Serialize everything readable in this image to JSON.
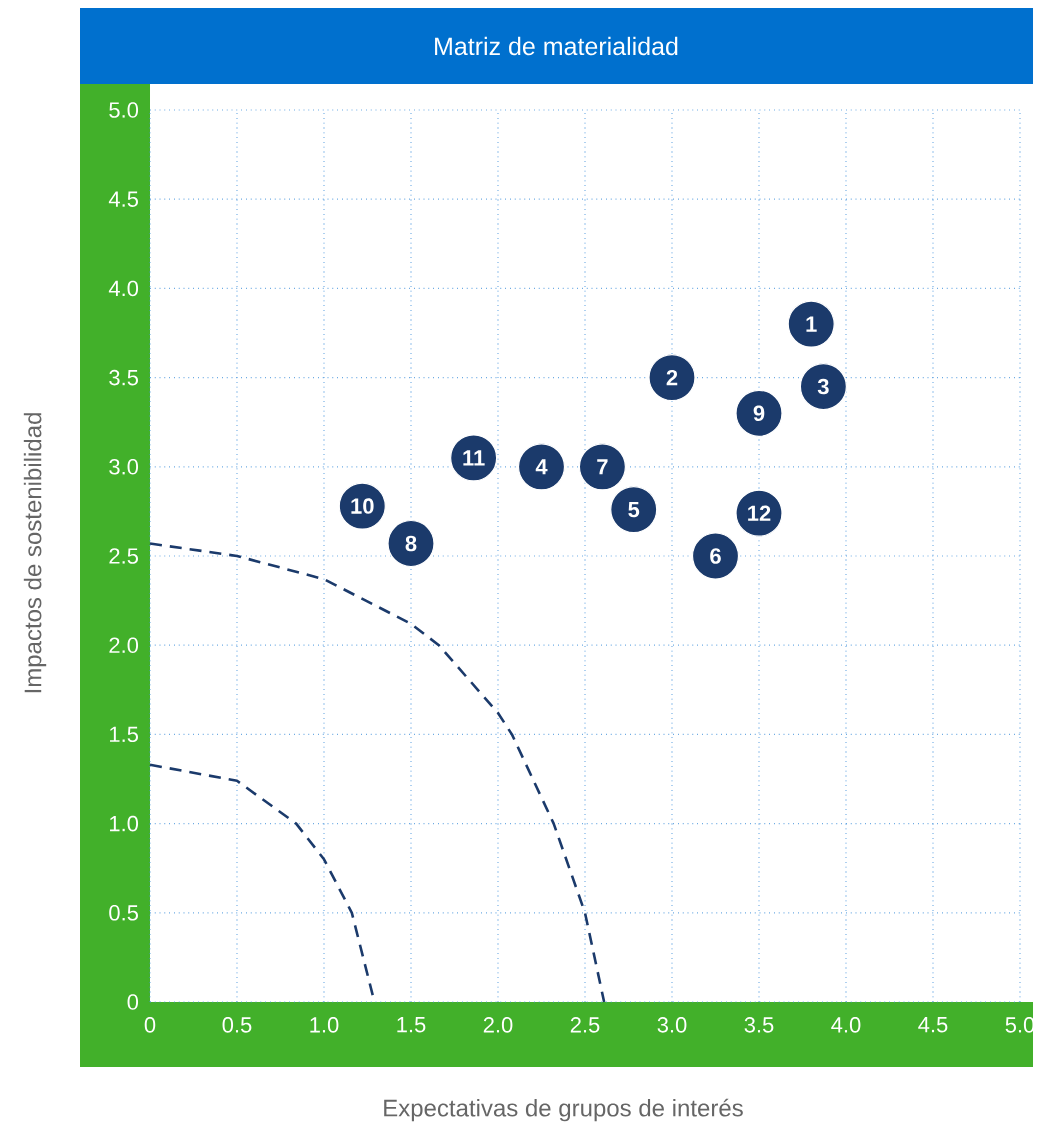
{
  "chart_data": {
    "type": "scatter",
    "title": "Matriz de materialidad",
    "xlabel": "Expectativas de grupos de interés",
    "ylabel": "Impactos de sostenibilidad",
    "xlim": [
      0,
      5
    ],
    "ylim": [
      0,
      5
    ],
    "xticks": [
      0,
      0.5,
      {
        "value": 1,
        "label": "1.0"
      },
      1.5,
      {
        "value": 2,
        "label": "2.0"
      },
      2.5,
      {
        "value": 3,
        "label": "3.0"
      },
      3.5,
      {
        "value": 4,
        "label": "4.0"
      },
      4.5,
      {
        "value": 5,
        "label": "5.0"
      }
    ],
    "yticks": [
      0,
      0.5,
      {
        "value": 1,
        "label": "1.0"
      },
      1.5,
      {
        "value": 2,
        "label": "2.0"
      },
      2.5,
      {
        "value": 3,
        "label": "3.0"
      },
      3.5,
      {
        "value": 4,
        "label": "4.0"
      },
      4.5,
      {
        "value": 5,
        "label": "5.0"
      }
    ],
    "grid": true,
    "series": [
      {
        "type": "line",
        "color": "#1b3a6b",
        "line_style": "dashed",
        "marker": "none",
        "x": [
          0,
          0.5,
          1.0,
          1.5,
          1.66,
          2.0,
          2.08,
          2.32,
          2.5,
          2.61
        ],
        "values": [
          2.57,
          2.5,
          2.37,
          2.12,
          2.0,
          1.62,
          1.5,
          1.0,
          0.5,
          0
        ]
      },
      {
        "type": "line",
        "color": "#1b3a6b",
        "line_style": "dashed",
        "marker": "none",
        "x": [
          0,
          0.5,
          0.84,
          1.0,
          1.16,
          1.29
        ],
        "values": [
          1.33,
          1.24,
          1.0,
          0.8,
          0.5,
          0
        ]
      },
      {
        "color": "#1b3a6b",
        "marker": "circle",
        "x": [
          3.8,
          3.0,
          3.87,
          2.25,
          2.78,
          3.25,
          2.6,
          1.5,
          3.5,
          1.22,
          1.86,
          3.5
        ],
        "values": [
          3.8,
          3.5,
          3.45,
          3.0,
          2.76,
          2.5,
          3.0,
          2.57,
          3.3,
          2.78,
          3.05,
          2.74
        ]
      }
    ],
    "annotations": [
      {
        "text": "1",
        "x": 3.8,
        "y": 3.8
      },
      {
        "text": "2",
        "x": 3.0,
        "y": 3.5
      },
      {
        "text": "3",
        "x": 3.87,
        "y": 3.45
      },
      {
        "text": "4",
        "x": 2.25,
        "y": 3.0
      },
      {
        "text": "5",
        "x": 2.78,
        "y": 2.76
      },
      {
        "text": "6",
        "x": 3.25,
        "y": 2.5
      },
      {
        "text": "7",
        "x": 2.6,
        "y": 3.0
      },
      {
        "text": "8",
        "x": 1.5,
        "y": 2.57
      },
      {
        "text": "9",
        "x": 3.5,
        "y": 3.3
      },
      {
        "text": "10",
        "x": 1.22,
        "y": 2.78
      },
      {
        "text": "11",
        "x": 1.86,
        "y": 3.05
      },
      {
        "text": "12",
        "x": 3.5,
        "y": 2.74
      }
    ]
  }
}
